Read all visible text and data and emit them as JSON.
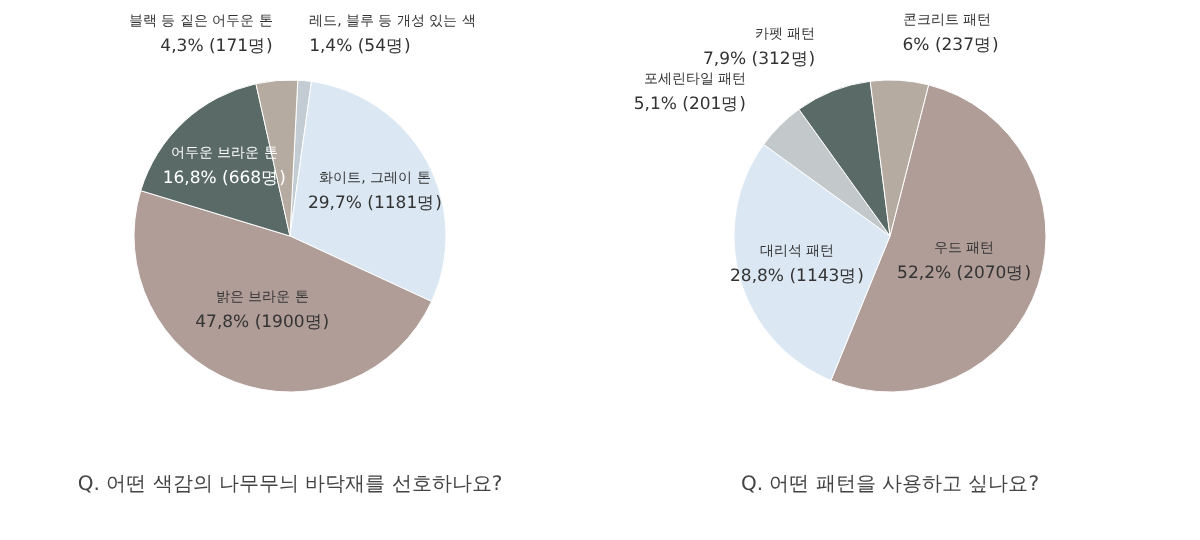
{
  "chart_data": [
    {
      "type": "pie",
      "title": "Q. 어떤 색감의 나무무늬 바닥재를 선호하나요?",
      "categories": [
        "레드, 블루 등 개성 있는 색",
        "화이트, 그레이 톤",
        "밝은 브라운 톤",
        "어두운 브라운 톤",
        "블랙 등 짙은 어두운 톤"
      ],
      "values": [
        1.4,
        29.7,
        47.8,
        16.8,
        4.3
      ],
      "colors": [
        "#c3ccd2",
        "#dbe8f3",
        "#b09d98",
        "#5a6a67",
        "#b6aba0"
      ],
      "value_labels": [
        "1,4% (54명)",
        "29,7% (1181명)",
        "47,8% (1900명)",
        "16,8% (668명)",
        "4,3% (171명)"
      ]
    },
    {
      "type": "pie",
      "title": "Q. 어떤 패턴을 사용하고 싶나요?",
      "categories": [
        "우드 패턴",
        "대리석 패턴",
        "포세린타일 패턴",
        "카펫 패턴",
        "콘크리트 패턴"
      ],
      "values": [
        52.2,
        28.8,
        5.1,
        7.9,
        6
      ],
      "colors": [
        "#b09d98",
        "#dbe8f3",
        "#c3c8ca",
        "#5a6a67",
        "#b6aba0"
      ],
      "value_labels": [
        "52,2% (2070명)",
        "28,8% (1143명)",
        "5,1% (201명)",
        "7,9% (312명)",
        "6% (237명)"
      ]
    }
  ]
}
